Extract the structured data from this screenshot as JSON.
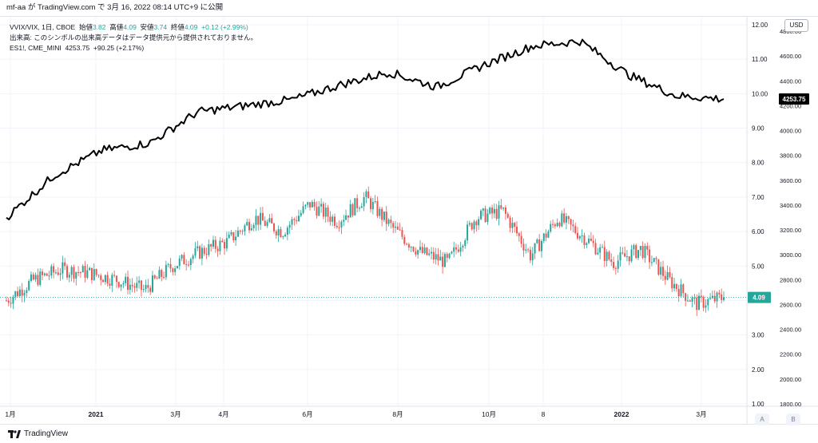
{
  "header": {
    "attribution": "mf-aa が TradingView.com で 3月 16, 2022 08:14 UTC+9 に公開"
  },
  "legend": {
    "main_symbol": "VVIX/VIX, 1日, CBOE",
    "open_label": "始値",
    "open_value": "3.82",
    "high_label": "高値",
    "high_value": "4.09",
    "low_label": "安値",
    "low_value": "3.74",
    "close_label": "終値",
    "close_value": "4.09",
    "change": "+0.12 (+2.99%)",
    "volume_note": "出来高: このシンボルの出来高データはデータ提供元から提供されておりません。",
    "overlay_symbol": "ES1!, CME_MINI",
    "overlay_value": "4253.75",
    "overlay_change": "+90.25 (+2.17%)"
  },
  "currency_label": "USD",
  "axis_buttons": {
    "auto": "A",
    "bold": "B"
  },
  "brand": "TradingView",
  "price_tags": {
    "overlay_last": "4253.75",
    "main_last": "4.09"
  },
  "chart_data": {
    "type": "candlestick+line",
    "main_series": {
      "name": "VVIX/VIX",
      "ylim": [
        1.0,
        12.0
      ],
      "y_ticks": [
        "1.00",
        "2.00",
        "3.00",
        "4.00",
        "5.00",
        "6.00",
        "7.00",
        "8.00",
        "9.00",
        "10.00",
        "11.00",
        "12.00"
      ],
      "last": 4.09,
      "approx_closes": [
        {
          "x": "2020-12",
          "y": 4.0
        },
        {
          "x": "2020-12",
          "y": 4.6
        },
        {
          "x": "2021-01",
          "y": 4.9
        },
        {
          "x": "2021-01",
          "y": 4.8
        },
        {
          "x": "2021-02",
          "y": 4.6
        },
        {
          "x": "2021-03",
          "y": 4.3
        },
        {
          "x": "2021-03",
          "y": 5.0
        },
        {
          "x": "2021-04",
          "y": 5.4
        },
        {
          "x": "2021-04",
          "y": 5.7
        },
        {
          "x": "2021-05",
          "y": 6.4
        },
        {
          "x": "2021-05",
          "y": 6.0
        },
        {
          "x": "2021-06",
          "y": 6.8
        },
        {
          "x": "2021-07",
          "y": 6.3
        },
        {
          "x": "2021-08",
          "y": 7.0
        },
        {
          "x": "2021-08",
          "y": 6.1
        },
        {
          "x": "2021-09",
          "y": 5.4
        },
        {
          "x": "2021-10",
          "y": 5.1
        },
        {
          "x": "2021-10",
          "y": 6.4
        },
        {
          "x": "2021-11",
          "y": 6.6
        },
        {
          "x": "2021-11",
          "y": 5.3
        },
        {
          "x": "2021-12",
          "y": 6.4
        },
        {
          "x": "2022-01",
          "y": 5.8
        },
        {
          "x": "2022-01",
          "y": 5.1
        },
        {
          "x": "2022-02",
          "y": 5.5
        },
        {
          "x": "2022-02",
          "y": 4.6
        },
        {
          "x": "2022-03",
          "y": 3.9
        },
        {
          "x": "2022-03",
          "y": 4.09
        }
      ]
    },
    "overlay_series": {
      "name": "ES1!",
      "ylim": [
        1800.0,
        4800.0
      ],
      "y_ticks": [
        "1800.00",
        "2000.00",
        "2200.00",
        "2400.00",
        "2600.00",
        "2800.00",
        "3000.00",
        "3200.00",
        "3400.00",
        "3600.00",
        "3800.00",
        "4000.00",
        "4200.00",
        "4400.00",
        "4600.00",
        "4800.00"
      ],
      "last": 4253.75,
      "approx_values": [
        {
          "x": "2020-12",
          "y": 3300
        },
        {
          "x": "2021-01",
          "y": 3640
        },
        {
          "x": "2021-02",
          "y": 3840
        },
        {
          "x": "2021-03",
          "y": 3900
        },
        {
          "x": "2021-04",
          "y": 4150
        },
        {
          "x": "2021-05",
          "y": 4200
        },
        {
          "x": "2021-06",
          "y": 4250
        },
        {
          "x": "2021-07",
          "y": 4370
        },
        {
          "x": "2021-08",
          "y": 4470
        },
        {
          "x": "2021-09",
          "y": 4350
        },
        {
          "x": "2021-10",
          "y": 4530
        },
        {
          "x": "2021-11",
          "y": 4680
        },
        {
          "x": "2021-12",
          "y": 4720
        },
        {
          "x": "2022-01",
          "y": 4450
        },
        {
          "x": "2022-02",
          "y": 4280
        },
        {
          "x": "2022-03",
          "y": 4253.75
        }
      ]
    },
    "x_ticks": [
      "1月",
      "2021",
      "3月",
      "4月",
      "6月",
      "8月",
      "10月",
      "8",
      "2022",
      "3月"
    ]
  }
}
